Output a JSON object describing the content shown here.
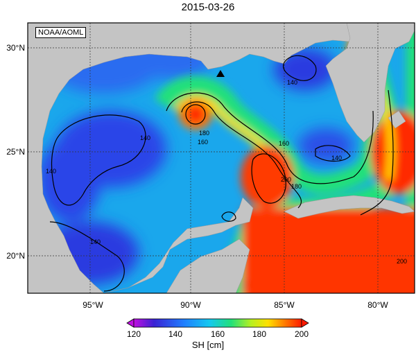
{
  "title": "2015-03-26",
  "credit": "NOAA/AOML",
  "colors": {
    "land": "#c4c4c4",
    "ocean_low": "#3a22d4",
    "ocean_mid": "#1aa7ec",
    "ocean_high": "#ff2a00"
  },
  "map": {
    "lon_ticks": [
      "95°W",
      "90°W",
      "85°W",
      "80°W"
    ],
    "lat_ticks": [
      "30°N",
      "25°N",
      "20°N"
    ],
    "marker": "triangle"
  },
  "contour_labels": {
    "c140_a": "140",
    "c140_b": "140",
    "c140_c": "140",
    "c140_d": "140",
    "c140_e": "140",
    "c180_a": "180",
    "c180_b": "180",
    "c160_a": "160",
    "c160_b": "160",
    "c200_a": "200",
    "c200_b": "200"
  },
  "colorbar": {
    "ticks": [
      "120",
      "140",
      "160",
      "180",
      "200"
    ],
    "label": "SH [cm]"
  }
}
